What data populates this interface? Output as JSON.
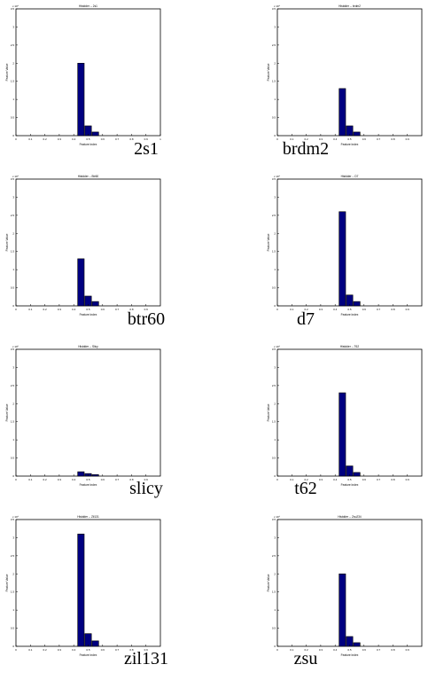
{
  "bar_color": "#000080",
  "bar_edge_color": "#000000",
  "chart_data": [
    {
      "type": "bar",
      "title": "Histdder -- 2s1",
      "xlabel": "Feature Index",
      "ylabel": "Feature Value",
      "caption": "2s1",
      "y_exponent": "x 10⁴",
      "ylim": [
        0,
        3.5
      ],
      "xlim": [
        0,
        1
      ],
      "x_ticks": [
        "0",
        "0.1",
        "0.2",
        "0.3",
        "0.4",
        "0.5",
        "0.6",
        "0.7",
        "0.8",
        "0.9",
        "1"
      ],
      "y_ticks": [
        "0",
        "0.5",
        "1",
        "1.5",
        "2",
        "2.5",
        "3",
        "3.5"
      ],
      "bars": [
        {
          "x": 0.45,
          "value": 2.0
        },
        {
          "x": 0.5,
          "value": 0.27
        },
        {
          "x": 0.55,
          "value": 0.1
        }
      ]
    },
    {
      "type": "bar",
      "title": "Histdder -- brdm2",
      "xlabel": "Feature Index",
      "ylabel": "Feature Value",
      "caption": "brdm2",
      "y_exponent": "x 10⁴",
      "ylim": [
        0,
        3.5
      ],
      "xlim": [
        0,
        1
      ],
      "x_ticks": [
        "0",
        "0.1",
        "0.2",
        "0.3",
        "0.4",
        "0.5",
        "0.6",
        "0.7",
        "0.8",
        "0.9"
      ],
      "y_ticks": [
        "0",
        "0.5",
        "1",
        "1.5",
        "2",
        "2.5",
        "3",
        "3.5"
      ],
      "bars": [
        {
          "x": 0.45,
          "value": 1.3
        },
        {
          "x": 0.5,
          "value": 0.27
        },
        {
          "x": 0.55,
          "value": 0.1
        }
      ]
    },
    {
      "type": "bar",
      "title": "Histdder -- Btr60",
      "xlabel": "Feature Index",
      "ylabel": "Feature Value",
      "caption": "btr60",
      "y_exponent": "x 10⁴",
      "ylim": [
        0,
        3.5
      ],
      "xlim": [
        0,
        1
      ],
      "x_ticks": [
        "0",
        "0.1",
        "0.2",
        "0.3",
        "0.4",
        "0.5",
        "0.6",
        "0.7",
        "0.8",
        "0.9"
      ],
      "y_ticks": [
        "0",
        "0.5",
        "1",
        "1.5",
        "2",
        "2.5",
        "3",
        "3.5"
      ],
      "bars": [
        {
          "x": 0.45,
          "value": 1.3
        },
        {
          "x": 0.5,
          "value": 0.27
        },
        {
          "x": 0.55,
          "value": 0.12
        }
      ]
    },
    {
      "type": "bar",
      "title": "Histdder -- D7",
      "xlabel": "Feature Index",
      "ylabel": "Feature Value",
      "caption": "d7",
      "y_exponent": "x 10⁴",
      "ylim": [
        0,
        3.5
      ],
      "xlim": [
        0,
        1
      ],
      "x_ticks": [
        "0",
        "0.1",
        "0.2",
        "0.3",
        "0.4",
        "0.5",
        "0.6",
        "0.7",
        "0.8",
        "0.9"
      ],
      "y_ticks": [
        "0",
        "0.5",
        "1",
        "1.5",
        "2",
        "2.5",
        "3",
        "3.5"
      ],
      "bars": [
        {
          "x": 0.45,
          "value": 2.6
        },
        {
          "x": 0.5,
          "value": 0.3
        },
        {
          "x": 0.55,
          "value": 0.12
        }
      ]
    },
    {
      "type": "bar",
      "title": "Histdder -- Slicy",
      "xlabel": "Feature Index",
      "ylabel": "Feature Value",
      "caption": "slicy",
      "y_exponent": "x 10⁵",
      "ylim": [
        0,
        3.5
      ],
      "xlim": [
        0,
        1
      ],
      "x_ticks": [
        "0",
        "0.1",
        "0.2",
        "0.3",
        "0.4",
        "0.5",
        "0.6",
        "0.7",
        "0.8",
        "0.9"
      ],
      "y_ticks": [
        "0",
        "0.5",
        "1",
        "1.5",
        "2",
        "2.5",
        "3",
        "3.5"
      ],
      "bars": [
        {
          "x": 0.45,
          "value": 0.12
        },
        {
          "x": 0.5,
          "value": 0.07
        },
        {
          "x": 0.55,
          "value": 0.04
        }
      ]
    },
    {
      "type": "bar",
      "title": "Histdder -- T62",
      "xlabel": "Feature Index",
      "ylabel": "Feature Value",
      "caption": "t62",
      "y_exponent": "x 10⁴",
      "ylim": [
        0,
        3.5
      ],
      "xlim": [
        0,
        1
      ],
      "x_ticks": [
        "0",
        "0.1",
        "0.2",
        "0.3",
        "0.4",
        "0.5",
        "0.6",
        "0.7",
        "0.8",
        "0.9"
      ],
      "y_ticks": [
        "0",
        "0.5",
        "1",
        "1.5",
        "2",
        "2.5",
        "3",
        "3.5"
      ],
      "bars": [
        {
          "x": 0.45,
          "value": 2.3
        },
        {
          "x": 0.5,
          "value": 0.28
        },
        {
          "x": 0.55,
          "value": 0.1
        }
      ]
    },
    {
      "type": "bar",
      "title": "Histdder -- Zil131",
      "xlabel": "Feature Index",
      "ylabel": "Feature Value",
      "caption": "zil131",
      "y_exponent": "x 10⁴",
      "ylim": [
        0,
        3.5
      ],
      "xlim": [
        0,
        1
      ],
      "x_ticks": [
        "0",
        "0.1",
        "0.2",
        "0.3",
        "0.4",
        "0.5",
        "0.6",
        "0.7",
        "0.8",
        "0.9"
      ],
      "y_ticks": [
        "0",
        "0.5",
        "1",
        "1.5",
        "2",
        "2.5",
        "3",
        "3.5"
      ],
      "bars": [
        {
          "x": 0.45,
          "value": 3.1
        },
        {
          "x": 0.5,
          "value": 0.35
        },
        {
          "x": 0.55,
          "value": 0.15
        }
      ]
    },
    {
      "type": "bar",
      "title": "Histdder -- Zsu234",
      "xlabel": "Feature Index",
      "ylabel": "Feature Value",
      "caption": "zsu",
      "y_exponent": "x 10⁴",
      "ylim": [
        0,
        3.5
      ],
      "xlim": [
        0,
        1
      ],
      "x_ticks": [
        "0",
        "0.1",
        "0.2",
        "0.3",
        "0.4",
        "0.5",
        "0.6",
        "0.7",
        "0.8",
        "0.9"
      ],
      "y_ticks": [
        "0",
        "0.5",
        "1",
        "1.5",
        "2",
        "2.5",
        "3",
        "3.5"
      ],
      "bars": [
        {
          "x": 0.45,
          "value": 2.0
        },
        {
          "x": 0.5,
          "value": 0.27
        },
        {
          "x": 0.55,
          "value": 0.1
        }
      ]
    }
  ]
}
